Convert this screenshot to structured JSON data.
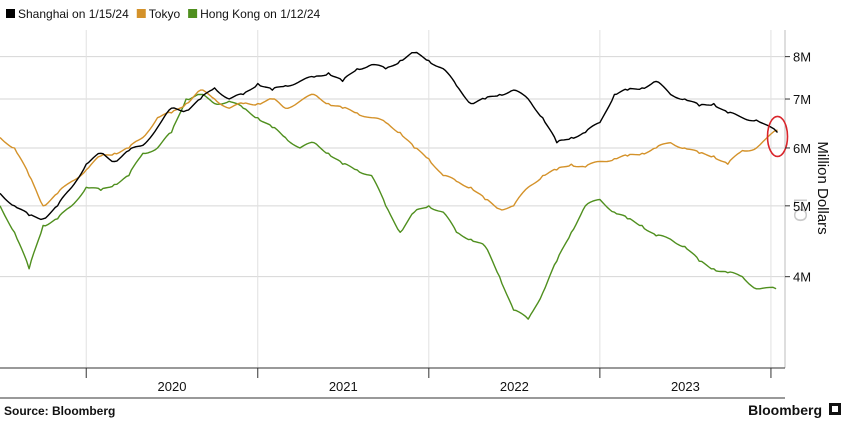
{
  "chart_data": {
    "type": "line",
    "title": "",
    "xlabel": "",
    "ylabel": "Million Dollars",
    "ylim": [
      3.0,
      8.7
    ],
    "y_scale": "log",
    "y_ticks": [
      {
        "value": 4,
        "label": "4M"
      },
      {
        "value": 5,
        "label": "5M"
      },
      {
        "value": 6,
        "label": "6M"
      },
      {
        "value": 7,
        "label": "7M"
      },
      {
        "value": 8,
        "label": "8M"
      }
    ],
    "x_ticks": [
      "2020",
      "2021",
      "2022",
      "2023"
    ],
    "x_range": [
      "2019-07-01",
      "2024-01-31"
    ],
    "grid": true,
    "legend_position": "top-left",
    "series": [
      {
        "name": "Shanghai on 1/15/24",
        "color": "#000000",
        "points": [
          [
            "2019-07-01",
            5.2
          ],
          [
            "2019-08-01",
            5.0
          ],
          [
            "2019-09-01",
            4.85
          ],
          [
            "2019-10-01",
            4.8
          ],
          [
            "2019-11-01",
            5.0
          ],
          [
            "2019-12-01",
            5.3
          ],
          [
            "2020-01-01",
            5.7
          ],
          [
            "2020-02-01",
            5.9
          ],
          [
            "2020-03-01",
            5.75
          ],
          [
            "2020-04-01",
            5.95
          ],
          [
            "2020-05-01",
            6.05
          ],
          [
            "2020-06-01",
            6.4
          ],
          [
            "2020-07-01",
            6.8
          ],
          [
            "2020-08-01",
            6.75
          ],
          [
            "2020-09-01",
            7.0
          ],
          [
            "2020-10-01",
            7.25
          ],
          [
            "2020-11-01",
            7.0
          ],
          [
            "2020-12-01",
            7.1
          ],
          [
            "2021-01-01",
            7.35
          ],
          [
            "2021-02-01",
            7.2
          ],
          [
            "2021-03-01",
            7.3
          ],
          [
            "2021-04-01",
            7.4
          ],
          [
            "2021-05-01",
            7.5
          ],
          [
            "2021-06-01",
            7.6
          ],
          [
            "2021-07-01",
            7.4
          ],
          [
            "2021-08-01",
            7.7
          ],
          [
            "2021-09-01",
            7.8
          ],
          [
            "2021-10-01",
            7.7
          ],
          [
            "2021-11-01",
            7.9
          ],
          [
            "2021-12-01",
            8.1
          ],
          [
            "2022-01-01",
            7.9
          ],
          [
            "2022-02-01",
            7.7
          ],
          [
            "2022-03-01",
            7.3
          ],
          [
            "2022-04-01",
            6.9
          ],
          [
            "2022-05-01",
            7.0
          ],
          [
            "2022-06-01",
            7.1
          ],
          [
            "2022-07-01",
            7.2
          ],
          [
            "2022-08-01",
            7.0
          ],
          [
            "2022-09-01",
            6.6
          ],
          [
            "2022-10-01",
            6.1
          ],
          [
            "2022-11-01",
            6.2
          ],
          [
            "2022-12-01",
            6.3
          ],
          [
            "2023-01-01",
            6.5
          ],
          [
            "2023-02-01",
            7.1
          ],
          [
            "2023-03-01",
            7.2
          ],
          [
            "2023-04-01",
            7.25
          ],
          [
            "2023-05-01",
            7.4
          ],
          [
            "2023-06-01",
            7.1
          ],
          [
            "2023-07-01",
            7.0
          ],
          [
            "2023-08-01",
            6.85
          ],
          [
            "2023-09-01",
            6.9
          ],
          [
            "2023-10-01",
            6.7
          ],
          [
            "2023-11-01",
            6.6
          ],
          [
            "2023-12-01",
            6.55
          ],
          [
            "2024-01-15",
            6.3
          ]
        ]
      },
      {
        "name": "Tokyo",
        "color": "#d4922a",
        "points": [
          [
            "2019-07-01",
            6.2
          ],
          [
            "2019-08-01",
            6.0
          ],
          [
            "2019-09-01",
            5.5
          ],
          [
            "2019-10-01",
            5.0
          ],
          [
            "2019-11-01",
            5.2
          ],
          [
            "2019-12-01",
            5.4
          ],
          [
            "2020-01-01",
            5.6
          ],
          [
            "2020-02-01",
            5.85
          ],
          [
            "2020-03-01",
            5.9
          ],
          [
            "2020-04-01",
            6.0
          ],
          [
            "2020-05-01",
            6.2
          ],
          [
            "2020-06-01",
            6.6
          ],
          [
            "2020-07-01",
            6.7
          ],
          [
            "2020-08-01",
            6.9
          ],
          [
            "2020-09-01",
            7.2
          ],
          [
            "2020-10-01",
            7.0
          ],
          [
            "2020-11-01",
            6.8
          ],
          [
            "2020-12-01",
            6.9
          ],
          [
            "2021-01-01",
            6.9
          ],
          [
            "2021-02-01",
            7.0
          ],
          [
            "2021-03-01",
            6.8
          ],
          [
            "2021-04-01",
            6.95
          ],
          [
            "2021-05-01",
            7.1
          ],
          [
            "2021-06-01",
            6.9
          ],
          [
            "2021-07-01",
            6.8
          ],
          [
            "2021-08-01",
            6.7
          ],
          [
            "2021-09-01",
            6.6
          ],
          [
            "2021-10-01",
            6.5
          ],
          [
            "2021-11-01",
            6.3
          ],
          [
            "2021-12-01",
            6.0
          ],
          [
            "2022-01-01",
            5.8
          ],
          [
            "2022-02-01",
            5.5
          ],
          [
            "2022-03-01",
            5.4
          ],
          [
            "2022-04-01",
            5.3
          ],
          [
            "2022-05-01",
            5.1
          ],
          [
            "2022-06-01",
            4.95
          ],
          [
            "2022-07-01",
            5.0
          ],
          [
            "2022-08-01",
            5.3
          ],
          [
            "2022-09-01",
            5.5
          ],
          [
            "2022-10-01",
            5.6
          ],
          [
            "2022-11-01",
            5.7
          ],
          [
            "2022-12-01",
            5.65
          ],
          [
            "2023-01-01",
            5.75
          ],
          [
            "2023-02-01",
            5.8
          ],
          [
            "2023-03-01",
            5.85
          ],
          [
            "2023-04-01",
            5.9
          ],
          [
            "2023-05-01",
            6.0
          ],
          [
            "2023-06-01",
            6.1
          ],
          [
            "2023-07-01",
            6.0
          ],
          [
            "2023-08-01",
            5.9
          ],
          [
            "2023-09-01",
            5.85
          ],
          [
            "2023-10-01",
            5.7
          ],
          [
            "2023-11-01",
            5.95
          ],
          [
            "2023-12-01",
            6.0
          ],
          [
            "2024-01-15",
            6.35
          ]
        ]
      },
      {
        "name": "Hong Kong on 1/12/24",
        "color": "#4f8f1e",
        "points": [
          [
            "2019-07-01",
            5.0
          ],
          [
            "2019-08-01",
            4.6
          ],
          [
            "2019-09-01",
            4.1
          ],
          [
            "2019-10-01",
            4.7
          ],
          [
            "2019-11-01",
            4.8
          ],
          [
            "2019-12-01",
            5.0
          ],
          [
            "2020-01-01",
            5.3
          ],
          [
            "2020-02-01",
            5.25
          ],
          [
            "2020-03-01",
            5.35
          ],
          [
            "2020-04-01",
            5.5
          ],
          [
            "2020-05-01",
            5.9
          ],
          [
            "2020-06-01",
            6.0
          ],
          [
            "2020-07-01",
            6.3
          ],
          [
            "2020-08-01",
            7.0
          ],
          [
            "2020-09-01",
            7.1
          ],
          [
            "2020-10-01",
            6.9
          ],
          [
            "2020-11-01",
            6.95
          ],
          [
            "2020-12-01",
            6.8
          ],
          [
            "2021-01-01",
            6.6
          ],
          [
            "2021-02-01",
            6.4
          ],
          [
            "2021-03-01",
            6.2
          ],
          [
            "2021-04-01",
            6.0
          ],
          [
            "2021-05-01",
            6.1
          ],
          [
            "2021-06-01",
            5.9
          ],
          [
            "2021-07-01",
            5.7
          ],
          [
            "2021-08-01",
            5.6
          ],
          [
            "2021-09-01",
            5.5
          ],
          [
            "2021-10-01",
            5.0
          ],
          [
            "2021-11-01",
            4.6
          ],
          [
            "2021-12-01",
            4.9
          ],
          [
            "2022-01-01",
            5.0
          ],
          [
            "2022-02-01",
            4.9
          ],
          [
            "2022-03-01",
            4.6
          ],
          [
            "2022-04-01",
            4.5
          ],
          [
            "2022-05-01",
            4.4
          ],
          [
            "2022-06-01",
            4.0
          ],
          [
            "2022-07-01",
            3.6
          ],
          [
            "2022-08-01",
            3.5
          ],
          [
            "2022-09-01",
            3.8
          ],
          [
            "2022-10-01",
            4.2
          ],
          [
            "2022-11-01",
            4.6
          ],
          [
            "2022-12-01",
            5.0
          ],
          [
            "2023-01-01",
            5.1
          ],
          [
            "2023-02-01",
            4.9
          ],
          [
            "2023-03-01",
            4.8
          ],
          [
            "2023-04-01",
            4.7
          ],
          [
            "2023-05-01",
            4.55
          ],
          [
            "2023-06-01",
            4.5
          ],
          [
            "2023-07-01",
            4.4
          ],
          [
            "2023-08-01",
            4.2
          ],
          [
            "2023-09-01",
            4.1
          ],
          [
            "2023-10-01",
            4.05
          ],
          [
            "2023-11-01",
            4.0
          ],
          [
            "2023-12-01",
            3.85
          ],
          [
            "2024-01-12",
            3.85
          ]
        ]
      }
    ],
    "annotations": [
      {
        "type": "circle",
        "color": "#d9252b",
        "at": [
          "2024-01-15",
          6.3
        ],
        "label": ""
      }
    ]
  },
  "footer": {
    "source": "Source: Bloomberg",
    "brand": "Bloomberg"
  },
  "watermark": "LO"
}
